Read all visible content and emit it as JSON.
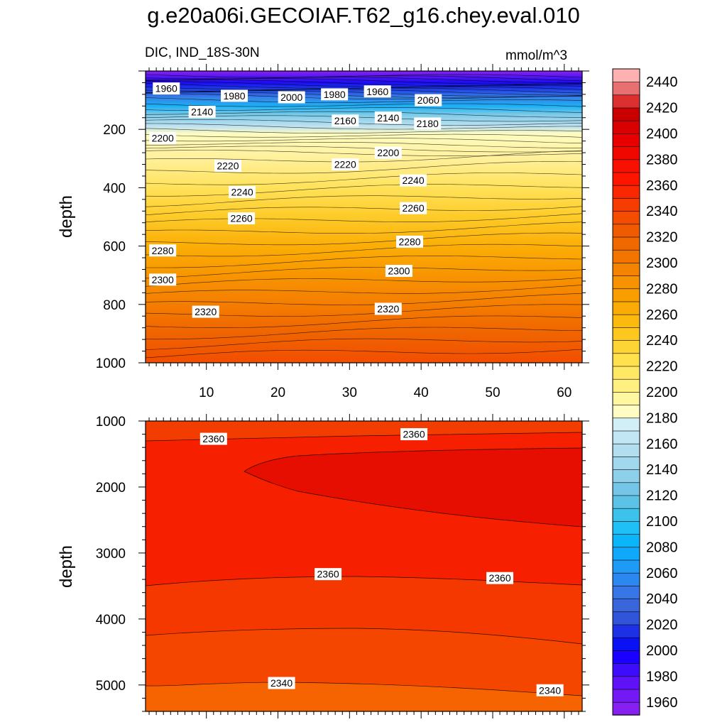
{
  "chart_data": {
    "type": "contour",
    "title": "g.e20a06i.GECOIAF.T62_g16.chey.eval.010",
    "variable": "DIC, IND_18S-30N",
    "units": "mmol/m^3",
    "ylabel": "depth",
    "x_ticks": [
      10,
      20,
      30,
      40,
      50,
      60
    ],
    "x_range": [
      1.5,
      62.5
    ],
    "colorbar": {
      "levels": [
        1960,
        1970,
        1980,
        1990,
        2000,
        2010,
        2020,
        2030,
        2040,
        2050,
        2060,
        2070,
        2080,
        2090,
        2100,
        2110,
        2120,
        2130,
        2140,
        2150,
        2160,
        2170,
        2180,
        2190,
        2200,
        2210,
        2220,
        2230,
        2240,
        2250,
        2260,
        2270,
        2280,
        2290,
        2300,
        2310,
        2320,
        2330,
        2340,
        2350,
        2360,
        2370,
        2380,
        2390,
        2400,
        2410,
        2420,
        2430,
        2440,
        2450
      ],
      "labels": [
        1960,
        1980,
        2000,
        2020,
        2040,
        2060,
        2080,
        2100,
        2120,
        2140,
        2160,
        2180,
        2200,
        2220,
        2240,
        2260,
        2280,
        2300,
        2320,
        2340,
        2360,
        2380,
        2400,
        2420,
        2440
      ],
      "colors": [
        "#8520f0",
        "#7219f5",
        "#5f12f8",
        "#3d0cfa",
        "#1a00ff",
        "#0a12f5",
        "#1e30e6",
        "#3055d8",
        "#3a66dc",
        "#3776e6",
        "#2a88f0",
        "#1f9af5",
        "#10a8fa",
        "#0bb5f8",
        "#1ec0f5",
        "#3dc2ec",
        "#5cc2e6",
        "#75c6e6",
        "#8ecfea",
        "#a2d8ee",
        "#b2def0",
        "#c2e6f3",
        "#d2eef6",
        "#fefcc2",
        "#fff7a0",
        "#fff080",
        "#ffe866",
        "#ffe14d",
        "#fdd535",
        "#fdc81e",
        "#fcba0f",
        "#fbab05",
        "#fa9e00",
        "#f79200",
        "#f48300",
        "#f27500",
        "#f06800",
        "#f05a00",
        "#f44c00",
        "#f63c00",
        "#fa2800",
        "#fc1600",
        "#f81000",
        "#f00800",
        "#e80000",
        "#d80000",
        "#c80000",
        "#dc3030",
        "#e87070",
        "#ffb0b0"
      ]
    },
    "panels": [
      {
        "name": "upper",
        "y_range": [
          0,
          1000
        ],
        "y_ticks": [
          200,
          400,
          600,
          800,
          1000
        ],
        "contour_labels": [
          {
            "text": "1960",
            "x": 4.4,
            "d": 60
          },
          {
            "text": "1980",
            "x": 13.9,
            "d": 85
          },
          {
            "text": "2000",
            "x": 21.9,
            "d": 90
          },
          {
            "text": "1980",
            "x": 27.9,
            "d": 80
          },
          {
            "text": "1960",
            "x": 33.9,
            "d": 70
          },
          {
            "text": "2060",
            "x": 41,
            "d": 100
          },
          {
            "text": "2140",
            "x": 9.4,
            "d": 140
          },
          {
            "text": "2160",
            "x": 29.4,
            "d": 170
          },
          {
            "text": "2140",
            "x": 35.4,
            "d": 160
          },
          {
            "text": "2180",
            "x": 40.9,
            "d": 180
          },
          {
            "text": "2200",
            "x": 3.9,
            "d": 230
          },
          {
            "text": "2200",
            "x": 35.4,
            "d": 280
          },
          {
            "text": "2220",
            "x": 13.0,
            "d": 325
          },
          {
            "text": "2220",
            "x": 29.4,
            "d": 320
          },
          {
            "text": "2240",
            "x": 15.0,
            "d": 415
          },
          {
            "text": "2240",
            "x": 38.9,
            "d": 375
          },
          {
            "text": "2260",
            "x": 14.9,
            "d": 505
          },
          {
            "text": "2260",
            "x": 38.9,
            "d": 470
          },
          {
            "text": "2280",
            "x": 3.9,
            "d": 615
          },
          {
            "text": "2280",
            "x": 38.4,
            "d": 585
          },
          {
            "text": "2300",
            "x": 3.9,
            "d": 715
          },
          {
            "text": "2300",
            "x": 36.9,
            "d": 685
          },
          {
            "text": "2320",
            "x": 9.9,
            "d": 825
          },
          {
            "text": "2320",
            "x": 35.4,
            "d": 815
          }
        ]
      },
      {
        "name": "lower",
        "y_range": [
          1000,
          5400
        ],
        "y_ticks": [
          1000,
          2000,
          3000,
          4000,
          5000
        ],
        "contour_labels": [
          {
            "text": "2360",
            "x": 11.0,
            "d": 1270
          },
          {
            "text": "2360",
            "x": 39.0,
            "d": 1200
          },
          {
            "text": "2360",
            "x": 27.0,
            "d": 3320
          },
          {
            "text": "2360",
            "x": 51.0,
            "d": 3380
          },
          {
            "text": "2340",
            "x": 20.5,
            "d": 4970
          },
          {
            "text": "2340",
            "x": 58.0,
            "d": 5080
          }
        ]
      }
    ]
  }
}
